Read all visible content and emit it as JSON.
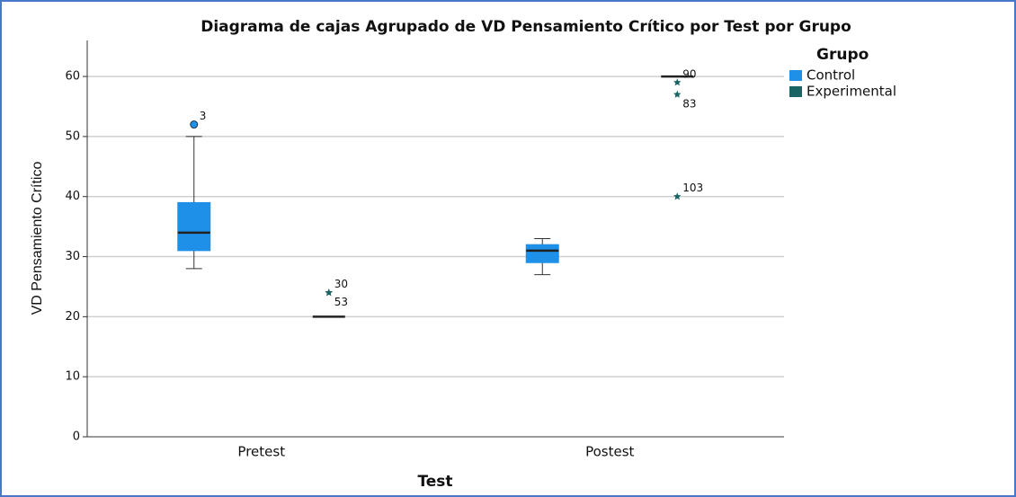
{
  "chart_data": {
    "type": "box",
    "title": "Diagrama de cajas Agrupado de VD Pensamiento Crítico por Test por Grupo",
    "x_label": "Test",
    "y_label": "VD Pensamiento Crítico",
    "legend_title": "Grupo",
    "legend": "right",
    "grid": true,
    "categories": [
      "Pretest",
      "Postest"
    ],
    "ylim": [
      0,
      66
    ],
    "yticks": [
      0,
      10,
      20,
      30,
      40,
      50,
      60
    ],
    "series": [
      {
        "name": "Control",
        "color": "#1e90e8",
        "boxes": [
          {
            "min": 28,
            "q1": 31,
            "median": 34,
            "q3": 39,
            "max": 50,
            "outliers": [
              {
                "value": 52,
                "case": "3",
                "marker": "circle"
              }
            ]
          },
          {
            "min": 27,
            "q1": 29,
            "median": 31,
            "q3": 32,
            "max": 33,
            "outliers": []
          }
        ]
      },
      {
        "name": "Experimental",
        "color": "#1a6464",
        "boxes": [
          {
            "min": 20,
            "q1": 20,
            "median": 20,
            "q3": 20,
            "max": 20,
            "outliers": [
              {
                "value": 24,
                "case": "30",
                "marker": "star"
              },
              {
                "value": 24,
                "case": "53",
                "marker": "star"
              }
            ]
          },
          {
            "min": 60,
            "q1": 60,
            "median": 60,
            "q3": 60,
            "max": 60,
            "outliers": [
              {
                "value": 59,
                "case": "90",
                "marker": "star"
              },
              {
                "value": 57,
                "case": "83",
                "marker": "star"
              },
              {
                "value": 40,
                "case": "103",
                "marker": "star"
              }
            ]
          }
        ]
      }
    ]
  }
}
